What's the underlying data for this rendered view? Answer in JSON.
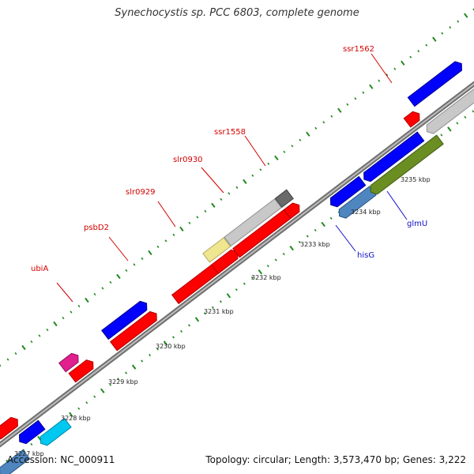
{
  "title": "Synechocystis sp. PCC 6803, complete genome",
  "accession": "Accession: NC_000911",
  "topology": "Topology: circular; Length: 3,573,470 bp; Genes: 3,222",
  "colors": {
    "backbone": "#8a8a8a",
    "tick": "#1e8a1e",
    "label_forward": "#d40000",
    "label_reverse": "#1010c8"
  },
  "ticks": [
    "3227 kbp",
    "3228 kbp",
    "3229 kbp",
    "3230 kbp",
    "3231 kbp",
    "3232 kbp",
    "3233 kbp",
    "3234 kbp",
    "3235 kbp"
  ],
  "gene_labels": {
    "ubiA": "ubiA",
    "psbD2": "psbD2",
    "slr0929": "slr0929",
    "slr0930": "slr0930",
    "ssr1558": "ssr1558",
    "ssr1562": "ssr1562",
    "hisG": "hisG",
    "glmU": "glmU"
  }
}
